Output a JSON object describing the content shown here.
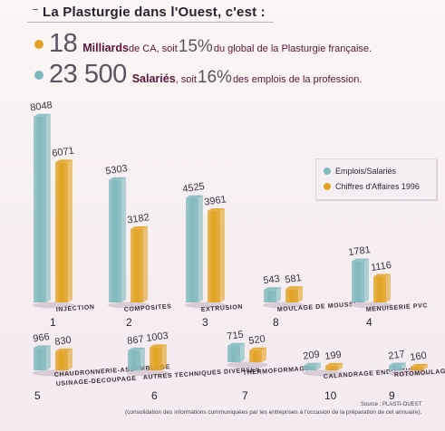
{
  "title": "La Plasturgie dans l'Ouest, c'est :",
  "key_figures": [
    {
      "big": "18",
      "strong": "Milliards",
      "t1": " de CA, soit ",
      "mid": "15%",
      "t2": " du global de la Plasturgie française.",
      "color": "#e2a324"
    },
    {
      "big": "23 500",
      "strong": "Salariés",
      "t1": ", soit ",
      "mid": "16%",
      "t2": " des emplois de la profession.",
      "color": "#7fb9bd"
    }
  ],
  "legend": {
    "items": [
      {
        "label": "Emplois/Salariés",
        "color": "#7fb9bd"
      },
      {
        "label": "Chiffres d'Affaires 1996",
        "color": "#e2a324"
      }
    ]
  },
  "chart_data": {
    "type": "bar",
    "series": [
      {
        "name": "Emplois/Salariés",
        "color": "#7fb9bd"
      },
      {
        "name": "Chiffres d'Affaires 1996",
        "color": "#e2a324"
      }
    ],
    "groups": [
      {
        "category": "INJECTION",
        "rank": "1",
        "values": [
          8048,
          6071
        ]
      },
      {
        "category": "COMPOSITES",
        "rank": "2",
        "values": [
          5303,
          3182
        ]
      },
      {
        "category": "EXTRUSION",
        "rank": "3",
        "values": [
          4525,
          3961
        ]
      },
      {
        "category": "MOULAGE DE MOUSSES",
        "rank": "8",
        "values": [
          543,
          581
        ]
      },
      {
        "category": "MENUISERIE PVC",
        "rank": "4",
        "values": [
          1781,
          1116
        ]
      },
      {
        "category": "CHAUDRONNERIE-ASSEMBLAGE USINAGE-DECOUPAGE",
        "rank": "5",
        "values": [
          966,
          830
        ]
      },
      {
        "category": "AUTRES TECHNIQUES DIVERSES",
        "rank": "6",
        "values": [
          867,
          1003
        ]
      },
      {
        "category": "THERMOFORMAGE",
        "rank": "7",
        "values": [
          715,
          520
        ]
      },
      {
        "category": "CALANDRAGE ENDUCTION",
        "rank": "10",
        "values": [
          209,
          199
        ]
      },
      {
        "category": "ROTOMOULAGE",
        "rank": "9",
        "values": [
          217,
          160
        ]
      }
    ]
  },
  "footnote": "(consolidation des informations communiquées par les entreprises à l'occasion de la préparation de cet annuaire).",
  "source": "Source : PLASTI-OUEST"
}
